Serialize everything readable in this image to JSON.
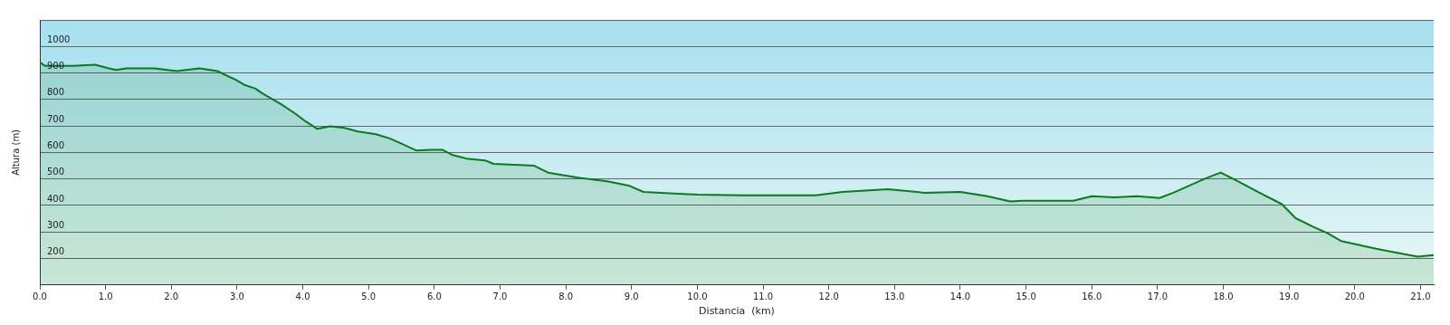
{
  "chart_data": {
    "type": "area",
    "xlabel": "Distancia  (km)",
    "ylabel": "Altura (m)",
    "grid": "y",
    "marker": "none",
    "xlim": [
      0,
      21.2
    ],
    "ylim": [
      100,
      1100
    ],
    "xticks": [
      {
        "value": 0,
        "label": "0.0"
      },
      {
        "value": 1,
        "label": "1.0"
      },
      {
        "value": 2,
        "label": "2.0"
      },
      {
        "value": 3,
        "label": "3.0"
      },
      {
        "value": 4,
        "label": "4.0"
      },
      {
        "value": 5,
        "label": "5.0"
      },
      {
        "value": 6,
        "label": "6.0"
      },
      {
        "value": 7,
        "label": "7.0"
      },
      {
        "value": 8,
        "label": "8.0"
      },
      {
        "value": 9,
        "label": "9.0"
      },
      {
        "value": 10,
        "label": "10.0"
      },
      {
        "value": 11,
        "label": "11.0"
      },
      {
        "value": 12,
        "label": "12.0"
      },
      {
        "value": 13,
        "label": "13.0"
      },
      {
        "value": 14,
        "label": "14.0"
      },
      {
        "value": 15,
        "label": "15.0"
      },
      {
        "value": 16,
        "label": "16.0"
      },
      {
        "value": 17,
        "label": "17.0"
      },
      {
        "value": 18,
        "label": "18.0"
      },
      {
        "value": 19,
        "label": "19.0"
      },
      {
        "value": 20,
        "label": "20.0"
      },
      {
        "value": 21,
        "label": "21.0"
      }
    ],
    "yticks": [
      {
        "value": 100,
        "label": null
      },
      200,
      300,
      400,
      500,
      600,
      700,
      800,
      900,
      1000,
      {
        "value": 1100,
        "label": null
      }
    ],
    "x": [
      0,
      0.08,
      0.5,
      0.84,
      1.05,
      1.16,
      1.32,
      1.74,
      2.08,
      2.43,
      2.7,
      2.98,
      3.11,
      3.28,
      3.39,
      3.67,
      3.87,
      4.05,
      4.22,
      4.42,
      4.63,
      4.84,
      5.11,
      5.32,
      5.53,
      5.73,
      5.94,
      6.12,
      6.28,
      6.49,
      6.77,
      6.9,
      7.52,
      7.73,
      8.21,
      8.63,
      8.97,
      9.18,
      10,
      10.69,
      11.8,
      12.21,
      12.9,
      13.45,
      14,
      14.41,
      14.76,
      14.96,
      15.52,
      15.72,
      16,
      16.34,
      16.69,
      17.03,
      17.24,
      17.72,
      17.96,
      18.2,
      18.55,
      18.89,
      19.1,
      19.37,
      19.58,
      19.79,
      20.34,
      20.68,
      20.96,
      21.2
    ],
    "series": [
      {
        "color": "#0a7a1e",
        "values": [
          940,
          927,
          927,
          931,
          917,
          911,
          917,
          917,
          907,
          917,
          907,
          874,
          855,
          841,
          822,
          782,
          749,
          716,
          689,
          699,
          693,
          679,
          669,
          653,
          630,
          607,
          610,
          610,
          590,
          577,
          570,
          557,
          550,
          524,
          504,
          491,
          474,
          451,
          441,
          438,
          438,
          451,
          461,
          448,
          451,
          435,
          415,
          418,
          418,
          418,
          435,
          431,
          435,
          428,
          448,
          501,
          524,
          494,
          448,
          405,
          352,
          319,
          296,
          266,
          236,
          220,
          207,
          213
        ]
      }
    ]
  }
}
